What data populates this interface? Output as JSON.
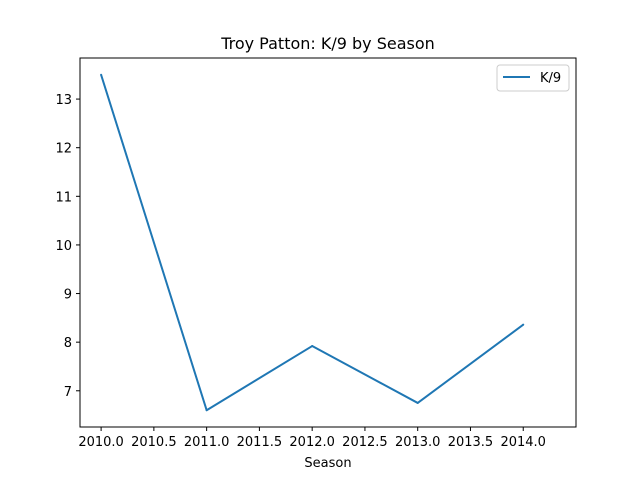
{
  "chart_data": {
    "type": "line",
    "title": "Troy Patton: K/9 by Season",
    "xlabel": "Season",
    "ylabel": "",
    "x": [
      2010,
      2011,
      2012,
      2013,
      2014
    ],
    "series": [
      {
        "name": "K/9",
        "values": [
          13.5,
          6.6,
          7.92,
          6.75,
          8.36
        ],
        "color": "#1f77b4"
      }
    ],
    "xlim": [
      2009.8,
      2014.5
    ],
    "ylim": [
      6.255,
      13.845
    ],
    "xticks": [
      2010.0,
      2010.5,
      2011.0,
      2011.5,
      2012.0,
      2012.5,
      2013.0,
      2013.5,
      2014.0
    ],
    "xtick_labels": [
      "2010.0",
      "2010.5",
      "2011.0",
      "2011.5",
      "2012.0",
      "2012.5",
      "2013.0",
      "2013.5",
      "2014.0"
    ],
    "yticks": [
      7,
      8,
      9,
      10,
      11,
      12,
      13
    ],
    "ytick_labels": [
      "7",
      "8",
      "9",
      "10",
      "11",
      "12",
      "13"
    ],
    "grid": false,
    "legend": "top-right"
  }
}
